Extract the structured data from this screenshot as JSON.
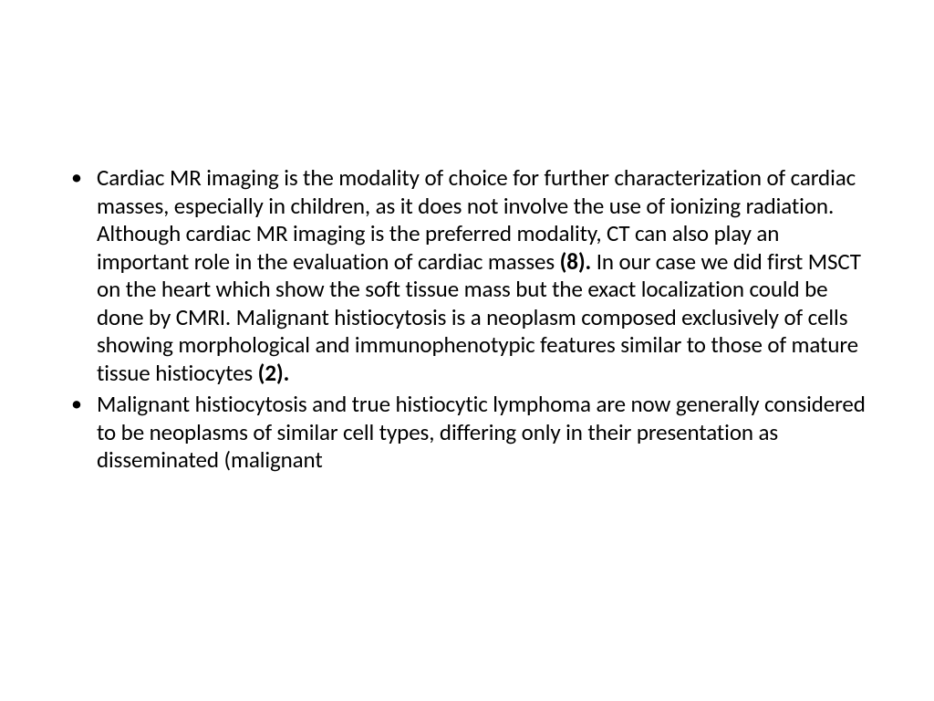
{
  "slide": {
    "background_color": "#ffffff",
    "text_color": "#000000",
    "font_family": "Calibri",
    "font_size_pt": 25,
    "line_height": 1.22,
    "bullets": [
      {
        "segments": [
          {
            "text": "Cardiac MR imaging is the modality of choice for further characterization of cardiac masses, especially in children, as it does not involve the use of ionizing radiation. Although cardiac MR imaging is the preferred modality, CT can also play an important role in the evaluation of cardiac masses ",
            "bold": false
          },
          {
            "text": "(8).",
            "bold": true
          },
          {
            "text": " In our case we did first MSCT on the heart which show the soft tissue mass but the exact localization could be done by CMRI. Malignant histiocytosis is a neoplasm composed exclusively of cells showing morphological and immunophenotypic features similar to those of mature tissue histiocytes ",
            "bold": false
          },
          {
            "text": "(2).",
            "bold": true
          }
        ]
      },
      {
        "segments": [
          {
            "text": " Malignant histiocytosis and true histiocytic lymphoma are now generally considered to be neoplasms of similar cell types, differing only in their presentation as disseminated (malignant",
            "bold": false
          }
        ]
      }
    ]
  }
}
